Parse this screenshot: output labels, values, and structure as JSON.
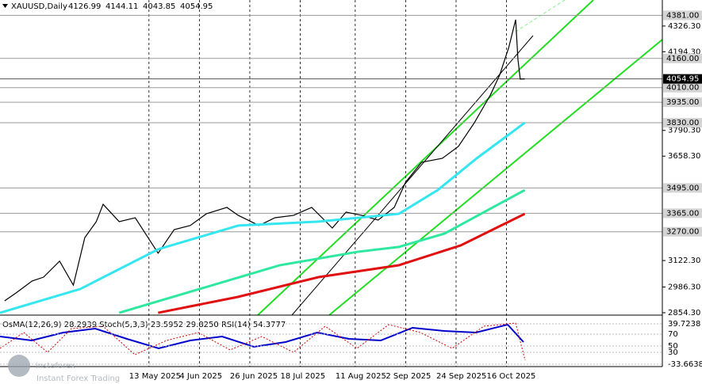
{
  "chart_data": {
    "type": "line",
    "title": "XAUUSD,Daily",
    "ohlc": [
      4126.99,
      4144.11,
      4043.85,
      4054.95
    ],
    "xlim": [
      "2025-03-09",
      "2025-12-23"
    ],
    "ylim": [
      2842,
      4460
    ],
    "xticks": [
      {
        "value": "2025-05-13",
        "label": "13 May 2025"
      },
      {
        "value": "2025-06-04",
        "label": "4 Jun 2025"
      },
      {
        "value": "2025-06-26",
        "label": "26 Jun 2025"
      },
      {
        "value": "2025-07-18",
        "label": "18 Jul 2025"
      },
      {
        "value": "2025-08-11",
        "label": "11 Aug 2025"
      },
      {
        "value": "2025-09-02",
        "label": "2 Sep 2025"
      },
      {
        "value": "2025-09-24",
        "label": "24 Sep 2025"
      },
      {
        "value": "2025-10-16",
        "label": "16 Oct 2025"
      }
    ],
    "yticks": [
      {
        "value": 4326.3,
        "label": "4326.30"
      },
      {
        "value": 4194.3,
        "label": "4194.30"
      },
      {
        "value": 3790.3,
        "label": "3790.30"
      },
      {
        "value": 3658.3,
        "label": "3658.30"
      },
      {
        "value": 3122.3,
        "label": "3122.30"
      },
      {
        "value": 2986.3,
        "label": "2986.30"
      },
      {
        "value": 2854.3,
        "label": "2854.30"
      }
    ],
    "levels": [
      {
        "value": 4381,
        "label": "4381.00"
      },
      {
        "value": 4160,
        "label": "4160.00"
      },
      {
        "value": 4010,
        "label": "4010.00"
      },
      {
        "value": 3935,
        "label": "3935.00"
      },
      {
        "value": 3830,
        "label": "3830.00"
      },
      {
        "value": 3495,
        "label": "3495.00"
      },
      {
        "value": 3365,
        "label": "3365.00"
      },
      {
        "value": 3270,
        "label": "3270.00"
      }
    ],
    "last_price": 4054.95,
    "series": [
      {
        "color": "#000000",
        "x": [
          "2025-03-11",
          "2025-03-16",
          "2025-03-23",
          "2025-03-28",
          "2025-04-04",
          "2025-04-10",
          "2025-04-15",
          "2025-04-20",
          "2025-04-23",
          "2025-04-30",
          "2025-05-07",
          "2025-05-17",
          "2025-05-24",
          "2025-05-31",
          "2025-06-07",
          "2025-06-16",
          "2025-06-21",
          "2025-06-30",
          "2025-07-07",
          "2025-07-15",
          "2025-07-23",
          "2025-08-01",
          "2025-08-07",
          "2025-08-14",
          "2025-08-21",
          "2025-08-28",
          "2025-09-02",
          "2025-09-09",
          "2025-09-18",
          "2025-09-25",
          "2025-10-02",
          "2025-10-09",
          "2025-10-13",
          "2025-10-17",
          "2025-10-20",
          "2025-10-21",
          "2025-10-22",
          "2025-10-24"
        ],
        "values": [
          2915,
          2956,
          3017,
          3037,
          3119,
          2996,
          3240,
          3322,
          3411,
          3322,
          3342,
          3160,
          3281,
          3302,
          3362,
          3395,
          3354,
          3302,
          3342,
          3354,
          3395,
          3289,
          3371,
          3354,
          3330,
          3395,
          3525,
          3627,
          3647,
          3708,
          3830,
          3973,
          4074,
          4217,
          4359,
          4154,
          4054,
          4055
        ]
      },
      {
        "color": "#33e6f0",
        "x": [
          "2025-03-09",
          "2025-04-13",
          "2025-05-17",
          "2025-06-21",
          "2025-07-26",
          "2025-08-30",
          "2025-09-16",
          "2025-10-03",
          "2025-10-24"
        ],
        "values": [
          2854,
          2976,
          3180,
          3302,
          3322,
          3362,
          3484,
          3647,
          3830
        ]
      },
      {
        "color": "#2ee8a0",
        "x": [
          "2025-04-30",
          "2025-06-04",
          "2025-07-09",
          "2025-08-12",
          "2025-08-30",
          "2025-09-19",
          "2025-10-10",
          "2025-10-24"
        ],
        "values": [
          2854,
          2976,
          3098,
          3167,
          3192,
          3261,
          3395,
          3484
        ]
      },
      {
        "color": "#e01010",
        "x": [
          "2025-05-17",
          "2025-06-21",
          "2025-07-26",
          "2025-08-30",
          "2025-09-26",
          "2025-10-24"
        ],
        "values": [
          2854,
          2936,
          3037,
          3098,
          3200,
          3362
        ]
      }
    ]
  },
  "indicator": {
    "label": "OsMA(12,26,9) 28.2939 Stoch(5,3,3) 23.5952 29.8250 RSI(14) 54.3777",
    "scale_labels": [
      "39.7238",
      "70",
      "50",
      "30",
      "-33.6638"
    ]
  },
  "watermark": {
    "brand": "instaforex",
    "tagline": "Instant Forex Trading"
  }
}
